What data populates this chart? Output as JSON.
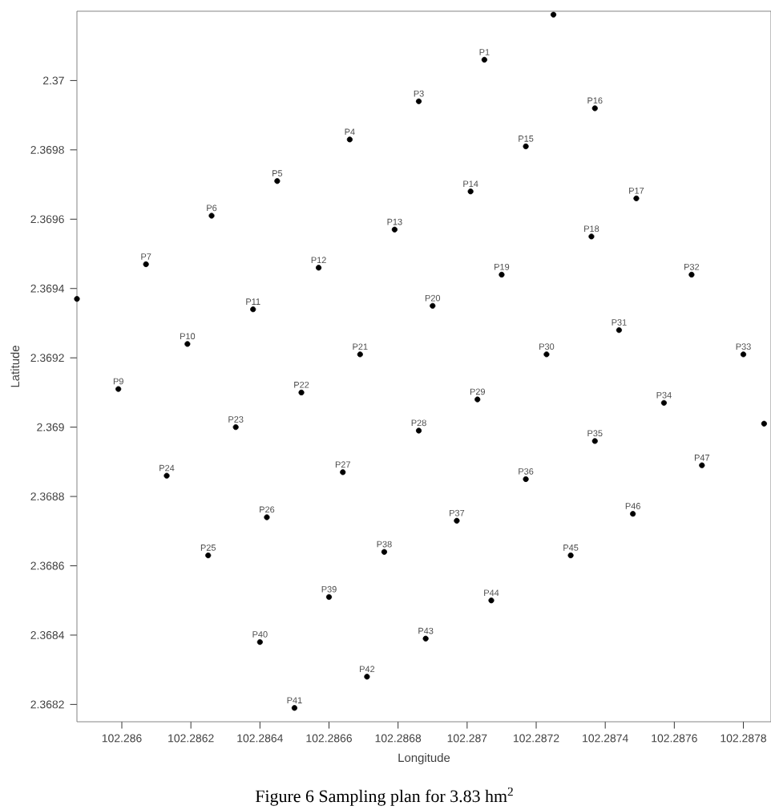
{
  "chart_data": {
    "type": "scatter",
    "xlabel": "Longitude",
    "ylabel": "Latitude",
    "marker": "circle",
    "xlim": [
      102.28587,
      102.28788
    ],
    "ylim": [
      2.36815,
      2.3702
    ],
    "xticks": [
      102.286,
      102.2862,
      102.2864,
      102.2866,
      102.2868,
      102.287,
      102.2872,
      102.2874,
      102.2876,
      102.2878
    ],
    "yticks": [
      2.3682,
      2.3684,
      2.3686,
      2.3688,
      2.369,
      2.3692,
      2.3694,
      2.3696,
      2.3698,
      2.37
    ],
    "series": [
      {
        "color": "#000000",
        "x": [
          102.28705,
          102.28725,
          102.28686,
          102.28666,
          102.28645,
          102.28626,
          102.28607,
          102.28587,
          102.28599,
          102.28619,
          102.28638,
          102.28657,
          102.28679,
          102.28701,
          102.28717,
          102.28737,
          102.28749,
          102.28736,
          102.2871,
          102.2869,
          102.28669,
          102.28652,
          102.28633,
          102.28613,
          102.28625,
          102.28642,
          102.28664,
          102.28686,
          102.28703,
          102.28723,
          102.28744,
          102.28765,
          102.2878,
          102.28757,
          102.28737,
          102.28717,
          102.28697,
          102.28676,
          102.2866,
          102.2864,
          102.2865,
          102.28671,
          102.28688,
          102.28707,
          102.2873,
          102.28748,
          102.28768,
          102.28786
        ],
        "values": [
          2.37006,
          2.37019,
          2.36994,
          2.36983,
          2.36971,
          2.36961,
          2.36947,
          2.36937,
          2.36911,
          2.36924,
          2.36934,
          2.36946,
          2.36957,
          2.36968,
          2.36981,
          2.36992,
          2.36966,
          2.36955,
          2.36944,
          2.36935,
          2.36921,
          2.3691,
          2.369,
          2.36886,
          2.36863,
          2.36874,
          2.36887,
          2.36899,
          2.36908,
          2.36921,
          2.36928,
          2.36944,
          2.36921,
          2.36907,
          2.36896,
          2.36885,
          2.36873,
          2.36864,
          2.36851,
          2.36838,
          2.36819,
          2.36828,
          2.36839,
          2.3685,
          2.36863,
          2.36875,
          2.36889,
          2.36901
        ]
      }
    ],
    "annotations": [
      {
        "text": "P1",
        "x": 102.28705,
        "y": 2.37006
      },
      {
        "text": "P3",
        "x": 102.28686,
        "y": 2.36994
      },
      {
        "text": "P4",
        "x": 102.28666,
        "y": 2.36983
      },
      {
        "text": "P5",
        "x": 102.28645,
        "y": 2.36971
      },
      {
        "text": "P6",
        "x": 102.28626,
        "y": 2.36961
      },
      {
        "text": "P7",
        "x": 102.28607,
        "y": 2.36947
      },
      {
        "text": "P9",
        "x": 102.28599,
        "y": 2.36911
      },
      {
        "text": "P10",
        "x": 102.28619,
        "y": 2.36924
      },
      {
        "text": "P11",
        "x": 102.28638,
        "y": 2.36934
      },
      {
        "text": "P12",
        "x": 102.28657,
        "y": 2.36946
      },
      {
        "text": "P13",
        "x": 102.28679,
        "y": 2.36957
      },
      {
        "text": "P14",
        "x": 102.28701,
        "y": 2.36968
      },
      {
        "text": "P15",
        "x": 102.28717,
        "y": 2.36981
      },
      {
        "text": "P16",
        "x": 102.28737,
        "y": 2.36992
      },
      {
        "text": "P17",
        "x": 102.28749,
        "y": 2.36966
      },
      {
        "text": "P18",
        "x": 102.28736,
        "y": 2.36955
      },
      {
        "text": "P19",
        "x": 102.2871,
        "y": 2.36944
      },
      {
        "text": "P20",
        "x": 102.2869,
        "y": 2.36935
      },
      {
        "text": "P21",
        "x": 102.28669,
        "y": 2.36921
      },
      {
        "text": "P22",
        "x": 102.28652,
        "y": 2.3691
      },
      {
        "text": "P23",
        "x": 102.28633,
        "y": 2.369
      },
      {
        "text": "P24",
        "x": 102.28613,
        "y": 2.36886
      },
      {
        "text": "P25",
        "x": 102.28625,
        "y": 2.36863
      },
      {
        "text": "P26",
        "x": 102.28642,
        "y": 2.36874
      },
      {
        "text": "P27",
        "x": 102.28664,
        "y": 2.36887
      },
      {
        "text": "P28",
        "x": 102.28686,
        "y": 2.36899
      },
      {
        "text": "P29",
        "x": 102.28703,
        "y": 2.36908
      },
      {
        "text": "P30",
        "x": 102.28723,
        "y": 2.36921
      },
      {
        "text": "P31",
        "x": 102.28744,
        "y": 2.36928
      },
      {
        "text": "P32",
        "x": 102.28765,
        "y": 2.36944
      },
      {
        "text": "P33",
        "x": 102.2878,
        "y": 2.36921
      },
      {
        "text": "P34",
        "x": 102.28757,
        "y": 2.36907
      },
      {
        "text": "P35",
        "x": 102.28737,
        "y": 2.36896
      },
      {
        "text": "P36",
        "x": 102.28717,
        "y": 2.36885
      },
      {
        "text": "P37",
        "x": 102.28697,
        "y": 2.36873
      },
      {
        "text": "P38",
        "x": 102.28676,
        "y": 2.36864
      },
      {
        "text": "P39",
        "x": 102.2866,
        "y": 2.36851
      },
      {
        "text": "P40",
        "x": 102.2864,
        "y": 2.36838
      },
      {
        "text": "P41",
        "x": 102.2865,
        "y": 2.36819
      },
      {
        "text": "P42",
        "x": 102.28671,
        "y": 2.36828
      },
      {
        "text": "P43",
        "x": 102.28688,
        "y": 2.36839
      },
      {
        "text": "P44",
        "x": 102.28707,
        "y": 2.3685
      },
      {
        "text": "P45",
        "x": 102.2873,
        "y": 2.36863
      },
      {
        "text": "P46",
        "x": 102.28748,
        "y": 2.36875
      },
      {
        "text": "P47",
        "x": 102.28768,
        "y": 2.36889
      },
      "Figure 6    Sampling plan for 3.83 hm$^{2}$"
    ]
  }
}
